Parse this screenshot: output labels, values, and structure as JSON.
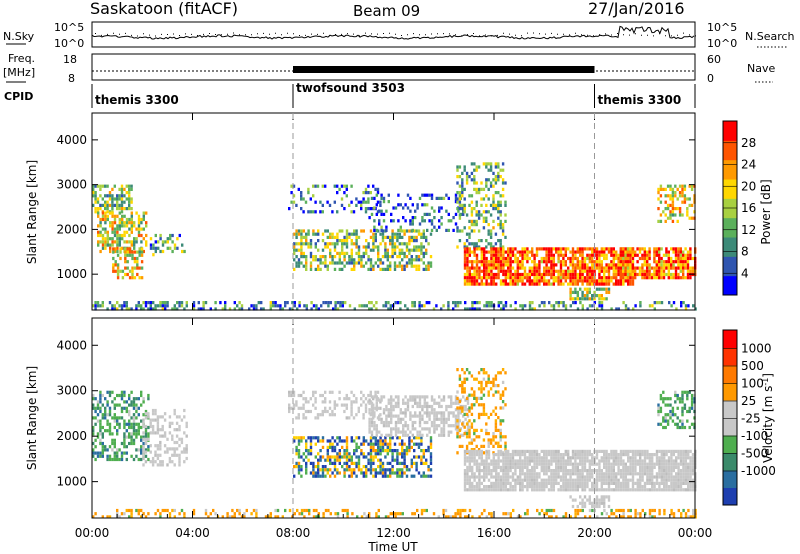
{
  "header": {
    "station": "Saskatoon (fitACF)",
    "beam": "Beam 09",
    "date": "27/Jan/2016"
  },
  "top_panel": {
    "nsky_label": "N.Sky",
    "nsearch_label": "N.Search",
    "left_ticks": [
      "10^5",
      "10^0"
    ],
    "right_ticks": [
      "10^5",
      "10^0"
    ]
  },
  "freq_panel": {
    "label_1": "Freq.",
    "label_2": "[MHz]",
    "nave_label": "Nave",
    "left_ticks": [
      "18",
      "8"
    ],
    "right_ticks": [
      "60",
      "0"
    ]
  },
  "cpid": {
    "label": "CPID",
    "segments": [
      {
        "name": "themis 3300",
        "start_h": 0,
        "end_h": 8
      },
      {
        "name": "twofsound 3503",
        "start_h": 8,
        "end_h": 20
      },
      {
        "name": "themis 3300",
        "start_h": 20,
        "end_h": 24
      }
    ]
  },
  "time_axis": {
    "title": "Time UT",
    "ticks": [
      "00:00",
      "04:00",
      "08:00",
      "12:00",
      "16:00",
      "20:00",
      "00:00"
    ]
  },
  "chart_data": [
    {
      "type": "heatmap",
      "name": "power",
      "ylabel": "Slant Range [km]",
      "yticks": [
        "1000",
        "2000",
        "3000",
        "4000"
      ],
      "ylim": [
        200,
        4600
      ],
      "xlim_hours": [
        0,
        24
      ],
      "colorbar": {
        "label": "Power [dB]",
        "ticks": [
          "4",
          "8",
          "12",
          "16",
          "20",
          "24",
          "28"
        ],
        "range": [
          0,
          31
        ],
        "colors": [
          "#0000ff",
          "#2f55b0",
          "#3c8a78",
          "#5bb05b",
          "#a8d040",
          "#ffd700",
          "#ff9a00",
          "#ff5500",
          "#ff0000"
        ]
      },
      "regions": [
        {
          "t": [
            0.0,
            1.6
          ],
          "r": [
            2400,
            3000
          ],
          "level": 0.45,
          "density": 0.55
        },
        {
          "t": [
            0.2,
            2.2
          ],
          "r": [
            1500,
            2400
          ],
          "level": 0.55,
          "density": 0.55
        },
        {
          "t": [
            0.8,
            2.0
          ],
          "r": [
            900,
            1600
          ],
          "level": 0.6,
          "density": 0.5
        },
        {
          "t": [
            2.3,
            3.8
          ],
          "r": [
            1400,
            1900
          ],
          "level": 0.35,
          "density": 0.3
        },
        {
          "t": [
            7.8,
            11.5
          ],
          "r": [
            2400,
            3000
          ],
          "level": 0.25,
          "density": 0.25
        },
        {
          "t": [
            8.0,
            13.5
          ],
          "r": [
            1100,
            2000
          ],
          "level": 0.45,
          "density": 0.5
        },
        {
          "t": [
            11.0,
            14.8
          ],
          "r": [
            2000,
            2800
          ],
          "level": 0.2,
          "density": 0.25
        },
        {
          "t": [
            14.5,
            16.5
          ],
          "r": [
            1600,
            3500
          ],
          "level": 0.4,
          "density": 0.35
        },
        {
          "t": [
            14.8,
            21.5
          ],
          "r": [
            800,
            1600
          ],
          "level": 0.82,
          "density": 0.85
        },
        {
          "t": [
            19.0,
            20.6
          ],
          "r": [
            450,
            700
          ],
          "level": 0.5,
          "density": 0.6
        },
        {
          "t": [
            21.0,
            24.0
          ],
          "r": [
            900,
            1600
          ],
          "level": 0.8,
          "density": 0.8
        },
        {
          "t": [
            22.5,
            24.0
          ],
          "r": [
            2200,
            3000
          ],
          "level": 0.6,
          "density": 0.45
        },
        {
          "t": [
            0.0,
            24.0
          ],
          "r": [
            200,
            400
          ],
          "level": 0.3,
          "density": 0.4
        }
      ]
    },
    {
      "type": "heatmap",
      "name": "velocity",
      "ylabel": "Slant Range [km]",
      "yticks": [
        "1000",
        "2000",
        "3000",
        "4000"
      ],
      "ylim": [
        200,
        4600
      ],
      "xlim_hours": [
        0,
        24
      ],
      "colorbar": {
        "label": "Velocity [m s^-1]",
        "ticks": [
          "1000",
          "500",
          "100",
          "25",
          "-25",
          "-100",
          "-500",
          "-1000"
        ],
        "range": [
          -1200,
          1200
        ],
        "colors": [
          "#1e3fb0",
          "#2a6ea0",
          "#3a8a6a",
          "#4fae4f",
          "#c8c8c8",
          "#c8c8c8",
          "#ff9900",
          "#ff7a00",
          "#ff3300",
          "#ff0000"
        ]
      },
      "regions": [
        {
          "t": [
            0.0,
            2.2
          ],
          "r": [
            1500,
            3000
          ],
          "kind": "green",
          "density": 0.5
        },
        {
          "t": [
            2.0,
            3.8
          ],
          "r": [
            1400,
            2600
          ],
          "kind": "gray",
          "density": 0.35
        },
        {
          "t": [
            7.8,
            11.5
          ],
          "r": [
            2400,
            3000
          ],
          "kind": "gray",
          "density": 0.35
        },
        {
          "t": [
            8.0,
            13.5
          ],
          "r": [
            1100,
            2000
          ],
          "kind": "mixed",
          "density": 0.55
        },
        {
          "t": [
            11.0,
            15.0
          ],
          "r": [
            2000,
            2900
          ],
          "kind": "gray",
          "density": 0.55
        },
        {
          "t": [
            14.5,
            16.5
          ],
          "r": [
            1600,
            3500
          ],
          "kind": "orange",
          "density": 0.35
        },
        {
          "t": [
            14.8,
            24.0
          ],
          "r": [
            800,
            1700
          ],
          "kind": "gray",
          "density": 0.85
        },
        {
          "t": [
            19.0,
            20.6
          ],
          "r": [
            450,
            700
          ],
          "kind": "gray",
          "density": 0.6
        },
        {
          "t": [
            22.5,
            24.0
          ],
          "r": [
            2200,
            3000
          ],
          "kind": "green",
          "density": 0.45
        },
        {
          "t": [
            0.0,
            24.0
          ],
          "r": [
            200,
            400
          ],
          "kind": "orange",
          "density": 0.35
        }
      ]
    }
  ]
}
